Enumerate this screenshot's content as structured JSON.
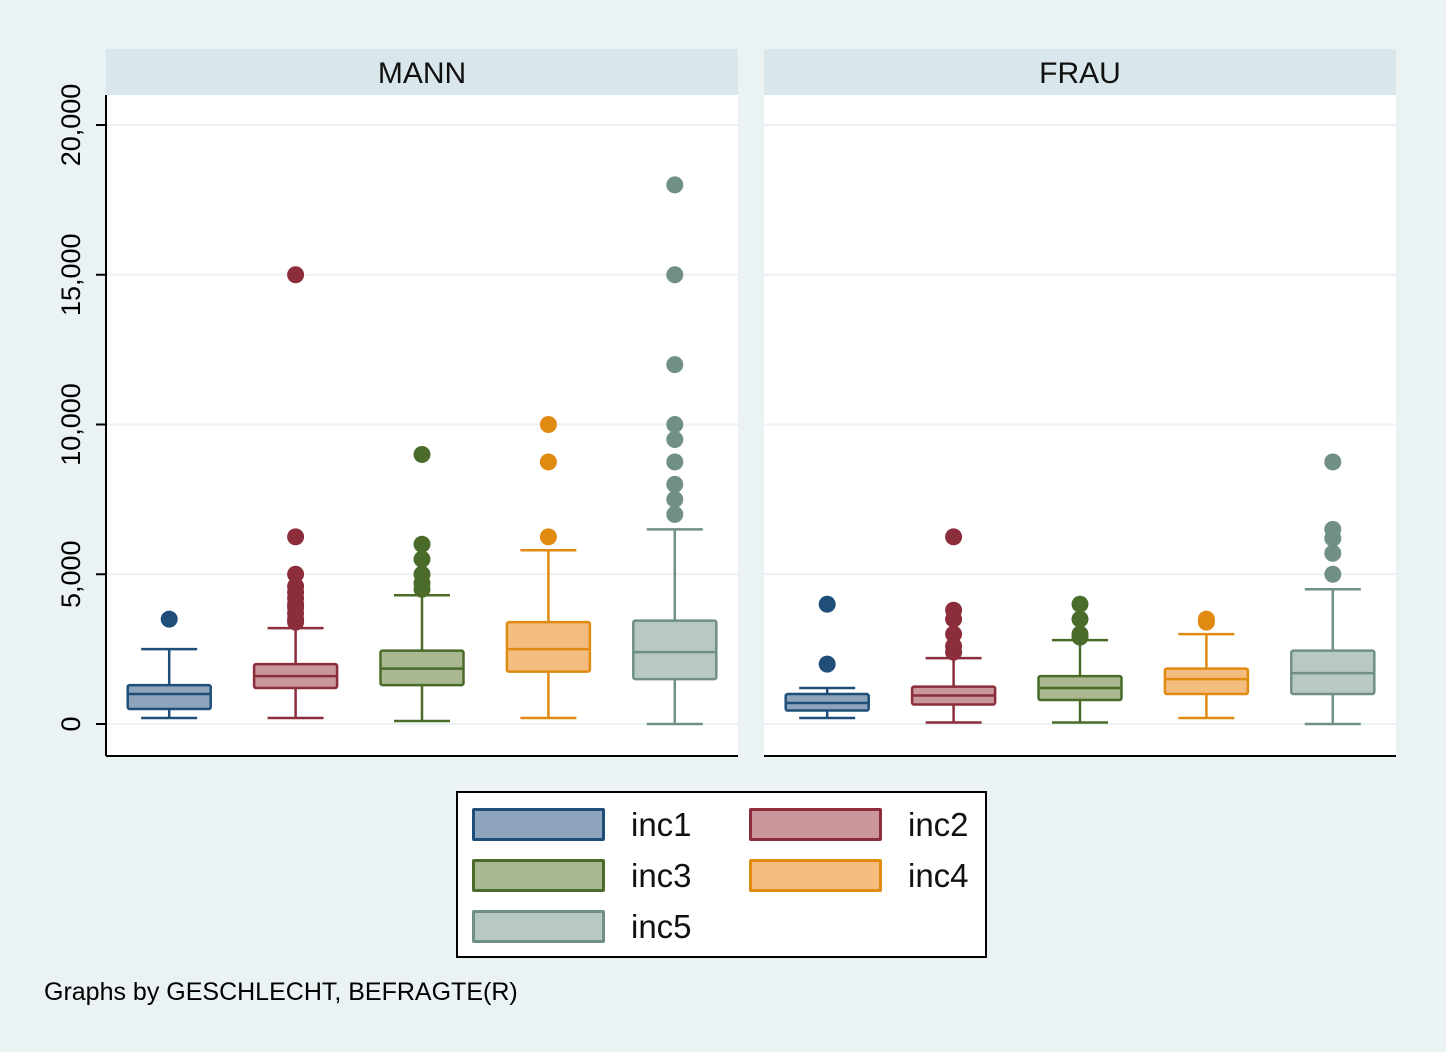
{
  "chart_data": {
    "type": "box",
    "y_axis": {
      "range": [
        -1000,
        21000
      ],
      "ticks": [
        0,
        5000,
        10000,
        15000,
        20000
      ],
      "tick_labels": [
        "0",
        "5,000",
        "10,000",
        "15,000",
        "20,000"
      ],
      "grid": true
    },
    "colors": {
      "inc1": {
        "fill": "#8ea3bc",
        "stroke": "#1f4e79"
      },
      "inc2": {
        "fill": "#c9979b",
        "stroke": "#8c2d3b"
      },
      "inc3": {
        "fill": "#a9b890",
        "stroke": "#4a6b2a"
      },
      "inc4": {
        "fill": "#f2bd7f",
        "stroke": "#e08a12"
      },
      "inc5": {
        "fill": "#b8c9c4",
        "stroke": "#6f8f87"
      }
    },
    "panels": [
      {
        "title": "MANN",
        "boxes": [
          {
            "series": "inc1",
            "whisker_low": 200,
            "q1": 500,
            "median": 1000,
            "q3": 1300,
            "whisker_high": 2500,
            "outliers": [
              3500
            ]
          },
          {
            "series": "inc2",
            "whisker_low": 200,
            "q1": 1200,
            "median": 1600,
            "q3": 2000,
            "whisker_high": 3200,
            "outliers": [
              3400,
              3500,
              3700,
              3900,
              4000,
              4200,
              4400,
              4600,
              5000,
              6250,
              15000
            ]
          },
          {
            "series": "inc3",
            "whisker_low": 100,
            "q1": 1300,
            "median": 1850,
            "q3": 2450,
            "whisker_high": 4300,
            "outliers": [
              4500,
              4700,
              5000,
              5500,
              6000,
              9000
            ]
          },
          {
            "series": "inc4",
            "whisker_low": 200,
            "q1": 1750,
            "median": 2500,
            "q3": 3400,
            "whisker_high": 5800,
            "outliers": [
              6250,
              8750,
              10000
            ]
          },
          {
            "series": "inc5",
            "whisker_low": 0,
            "q1": 1500,
            "median": 2400,
            "q3": 3450,
            "whisker_high": 6500,
            "outliers": [
              7000,
              7500,
              8000,
              8750,
              9500,
              10000,
              12000,
              15000,
              18000
            ]
          }
        ]
      },
      {
        "title": "FRAU",
        "boxes": [
          {
            "series": "inc1",
            "whisker_low": 200,
            "q1": 450,
            "median": 700,
            "q3": 1000,
            "whisker_high": 1200,
            "outliers": [
              2000,
              4000
            ]
          },
          {
            "series": "inc2",
            "whisker_low": 50,
            "q1": 650,
            "median": 950,
            "q3": 1250,
            "whisker_high": 2200,
            "outliers": [
              2400,
              2600,
              3000,
              3500,
              3800,
              6250
            ]
          },
          {
            "series": "inc3",
            "whisker_low": 50,
            "q1": 800,
            "median": 1200,
            "q3": 1600,
            "whisker_high": 2800,
            "outliers": [
              2900,
              3000,
              3500,
              4000
            ]
          },
          {
            "series": "inc4",
            "whisker_low": 200,
            "q1": 1000,
            "median": 1500,
            "q3": 1850,
            "whisker_high": 3000,
            "outliers": [
              3400,
              3500
            ]
          },
          {
            "series": "inc5",
            "whisker_low": 0,
            "q1": 1000,
            "median": 1700,
            "q3": 2450,
            "whisker_high": 4500,
            "outliers": [
              5000,
              5700,
              6200,
              6500,
              8750
            ]
          }
        ]
      }
    ],
    "legend": {
      "placement": "bottom-center",
      "entries": [
        "inc1",
        "inc2",
        "inc3",
        "inc4",
        "inc5"
      ]
    },
    "note": "Graphs by GESCHLECHT, BEFRAGTE(R)"
  }
}
